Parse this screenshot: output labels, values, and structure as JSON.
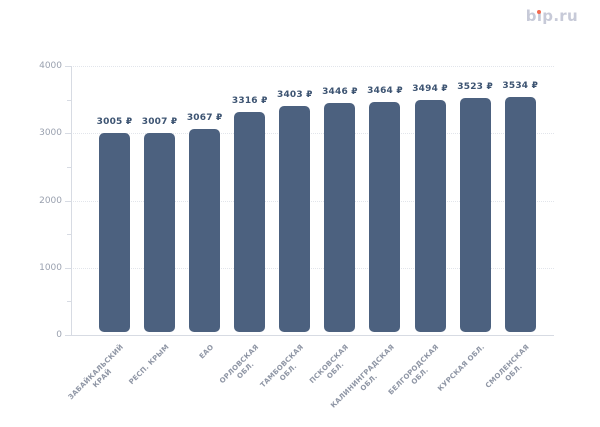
{
  "page": {
    "background": "#ffffff"
  },
  "logo": {
    "text": "bip.ru",
    "color": "#c7cad8",
    "dot_color": "#f4694e"
  },
  "chart_data": {
    "type": "bar",
    "title": "",
    "xlabel": "",
    "ylabel": "",
    "categories": [
      "ЗАБАЙКАЛЬСКИЙ\nКРАЙ",
      "РЕСП. КРЫМ",
      "ЕАО",
      "ОРЛОВСКАЯ\nОБЛ.",
      "ТАМБОВСКАЯ\nОБЛ.",
      "ПСКОВСКАЯ\nОБЛ.",
      "КАЛИНИНГРАДСКАЯ\nОБЛ.",
      "БЕЛГОРОДСКАЯ\nОБЛ.",
      "КУРСКАЯ ОБЛ.",
      "СМОЛЕНСКАЯ\nОБЛ."
    ],
    "values": [
      3005,
      3007,
      3067,
      3316,
      3403,
      3446,
      3464,
      3494,
      3523,
      3534
    ],
    "currency": "₽",
    "value_labels": [
      "3005 ₽",
      "3007 ₽",
      "3067 ₽",
      "3316 ₽",
      "3403 ₽",
      "3446 ₽",
      "3464 ₽",
      "3494 ₽",
      "3523 ₽",
      "3534 ₽"
    ],
    "ylim": [
      0,
      4000
    ],
    "yticks": [
      0,
      1000,
      2000,
      3000,
      4000
    ],
    "minor_yticks": [
      500,
      1500,
      2500,
      3500
    ],
    "grid": "horizontal-dotted",
    "legend": "none",
    "bar_color": "#4c617f",
    "value_label_color": "#3d5472",
    "ytick_label_color": "#9aa1af",
    "xtick_label_color": "#8f96a5",
    "grid_color": "#e2e5eb",
    "axis_color": "#d7dbe3"
  }
}
